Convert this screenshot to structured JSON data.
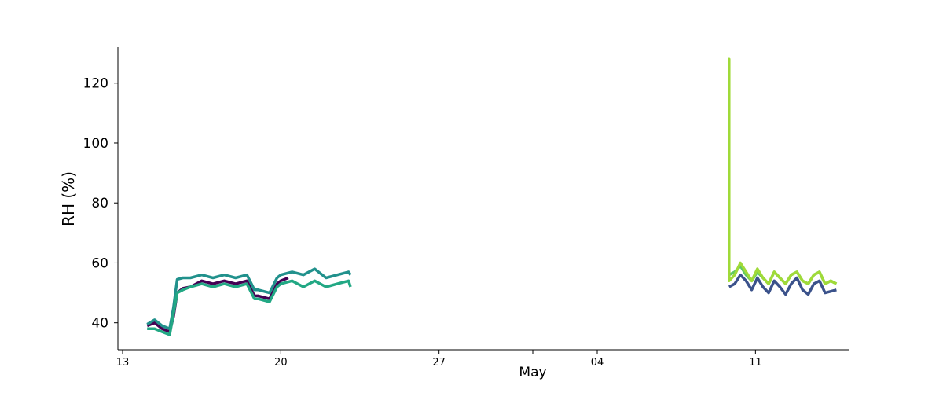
{
  "chart_data": {
    "type": "line",
    "xlabel": "May",
    "ylabel": "RH (%)",
    "x_tick_labels": [
      "13",
      "20",
      "27",
      "04",
      "11"
    ],
    "x_tick_dates": [
      "2023-04-13",
      "2023-04-20",
      "2023-04-27",
      "2023-05-04",
      "2023-05-11"
    ],
    "xlim": [
      "2023-04-12T19:00",
      "2023-05-15T03:00"
    ],
    "y_ticks": [
      40,
      60,
      80,
      100,
      120
    ],
    "ylim": [
      31,
      132
    ],
    "grid": false,
    "legend": "none",
    "series": [
      {
        "color": "#440154",
        "x": [
          "2023-04-14T02:00",
          "2023-04-14T10:00",
          "2023-04-14T18:00",
          "2023-04-15T02:00",
          "2023-04-15T06:00",
          "2023-04-15T10:00",
          "2023-04-15T16:00",
          "2023-04-16T00:00",
          "2023-04-16T12:00",
          "2023-04-17T00:00",
          "2023-04-17T12:00",
          "2023-04-18T00:00",
          "2023-04-18T12:00",
          "2023-04-18T20:00",
          "2023-04-19T00:00",
          "2023-04-19T12:00",
          "2023-04-19T20:00",
          "2023-04-20T00:00",
          "2023-04-20T08:00"
        ],
        "y": [
          39,
          40,
          38,
          37,
          42,
          50,
          51.5,
          52,
          54,
          53,
          54,
          53,
          54,
          49,
          49,
          48,
          53,
          54,
          55
        ]
      },
      {
        "color": "#3b528b",
        "x": [
          "2023-05-09T20:00",
          "2023-05-10T02:00",
          "2023-05-10T08:00",
          "2023-05-10T14:00",
          "2023-05-10T20:00",
          "2023-05-11T02:00",
          "2023-05-11T08:00",
          "2023-05-11T14:00",
          "2023-05-11T20:00",
          "2023-05-12T02:00",
          "2023-05-12T08:00",
          "2023-05-12T14:00",
          "2023-05-12T20:00",
          "2023-05-13T02:00",
          "2023-05-13T08:00",
          "2023-05-13T14:00",
          "2023-05-13T20:00",
          "2023-05-14T02:00",
          "2023-05-14T08:00",
          "2023-05-14T14:00"
        ],
        "y": [
          52,
          53,
          56,
          54,
          51,
          55,
          52,
          50,
          54,
          52,
          49.5,
          53,
          55,
          51,
          49.5,
          53,
          54,
          50,
          50.5,
          51
        ]
      },
      {
        "color": "#21918c",
        "x": [
          "2023-04-14T02:00",
          "2023-04-14T10:00",
          "2023-04-14T18:00",
          "2023-04-15T02:00",
          "2023-04-15T06:00",
          "2023-04-15T10:00",
          "2023-04-15T16:00",
          "2023-04-16T00:00",
          "2023-04-16T12:00",
          "2023-04-17T00:00",
          "2023-04-17T12:00",
          "2023-04-18T00:00",
          "2023-04-18T12:00",
          "2023-04-18T20:00",
          "2023-04-19T00:00",
          "2023-04-19T12:00",
          "2023-04-19T20:00",
          "2023-04-20T00:00",
          "2023-04-20T12:00",
          "2023-04-21T00:00",
          "2023-04-21T12:00",
          "2023-04-22T00:00",
          "2023-04-22T12:00",
          "2023-04-23T00:00",
          "2023-04-23T02:00"
        ],
        "y": [
          39.5,
          41,
          39,
          38,
          45,
          54.5,
          55,
          55,
          56,
          55,
          56,
          55,
          56,
          51,
          51,
          50,
          55,
          56,
          57,
          56,
          58,
          55,
          56,
          57,
          56
        ]
      },
      {
        "color": "#22a884",
        "x": [
          "2023-04-14T02:00",
          "2023-04-14T10:00",
          "2023-04-14T18:00",
          "2023-04-15T02:00",
          "2023-04-15T06:00",
          "2023-04-15T10:00",
          "2023-04-15T16:00",
          "2023-04-16T00:00",
          "2023-04-16T12:00",
          "2023-04-17T00:00",
          "2023-04-17T12:00",
          "2023-04-18T00:00",
          "2023-04-18T12:00",
          "2023-04-18T20:00",
          "2023-04-19T00:00",
          "2023-04-19T12:00",
          "2023-04-19T20:00",
          "2023-04-20T00:00",
          "2023-04-20T12:00",
          "2023-04-21T00:00",
          "2023-04-21T12:00",
          "2023-04-22T00:00",
          "2023-04-22T12:00",
          "2023-04-23T00:00",
          "2023-04-23T02:00"
        ],
        "y": [
          38,
          38,
          37,
          36,
          43,
          50,
          51,
          52,
          53,
          52,
          53,
          52,
          53,
          48,
          48,
          47,
          52,
          53,
          54,
          52,
          54,
          52,
          53,
          54,
          52
        ]
      },
      {
        "color": "#5ec962",
        "x": [
          "2023-05-09T20:00",
          "2023-05-10T02:00",
          "2023-05-10T08:00",
          "2023-05-10T14:00",
          "2023-05-10T20:00",
          "2023-05-11T02:00",
          "2023-05-11T08:00",
          "2023-05-11T14:00",
          "2023-05-11T20:00",
          "2023-05-12T02:00",
          "2023-05-12T08:00",
          "2023-05-12T14:00",
          "2023-05-12T20:00",
          "2023-05-13T02:00",
          "2023-05-13T08:00",
          "2023-05-13T14:00",
          "2023-05-13T20:00",
          "2023-05-14T02:00",
          "2023-05-14T08:00",
          "2023-05-14T14:00"
        ],
        "y": [
          56,
          57,
          59,
          56,
          54,
          57,
          55,
          53,
          57,
          55,
          53,
          56,
          57,
          54,
          53,
          56,
          57,
          53,
          54,
          53
        ]
      },
      {
        "color": "#a0da39",
        "x": [
          "2023-05-09T20:00",
          "2023-05-09T20:01",
          "2023-05-09T20:02",
          "2023-05-10T02:00",
          "2023-05-10T08:00",
          "2023-05-10T14:00",
          "2023-05-10T20:00",
          "2023-05-11T02:00",
          "2023-05-11T08:00",
          "2023-05-11T14:00",
          "2023-05-11T20:00",
          "2023-05-12T02:00",
          "2023-05-12T08:00",
          "2023-05-12T14:00",
          "2023-05-12T20:00",
          "2023-05-13T02:00",
          "2023-05-13T08:00",
          "2023-05-13T14:00",
          "2023-05-13T20:00",
          "2023-05-14T02:00",
          "2023-05-14T08:00",
          "2023-05-14T14:00"
        ],
        "y": [
          54,
          128,
          54,
          56,
          60,
          57,
          54,
          58,
          55,
          53,
          57,
          55,
          53,
          56,
          57,
          54,
          53,
          56,
          57,
          53,
          54,
          53
        ]
      }
    ]
  }
}
